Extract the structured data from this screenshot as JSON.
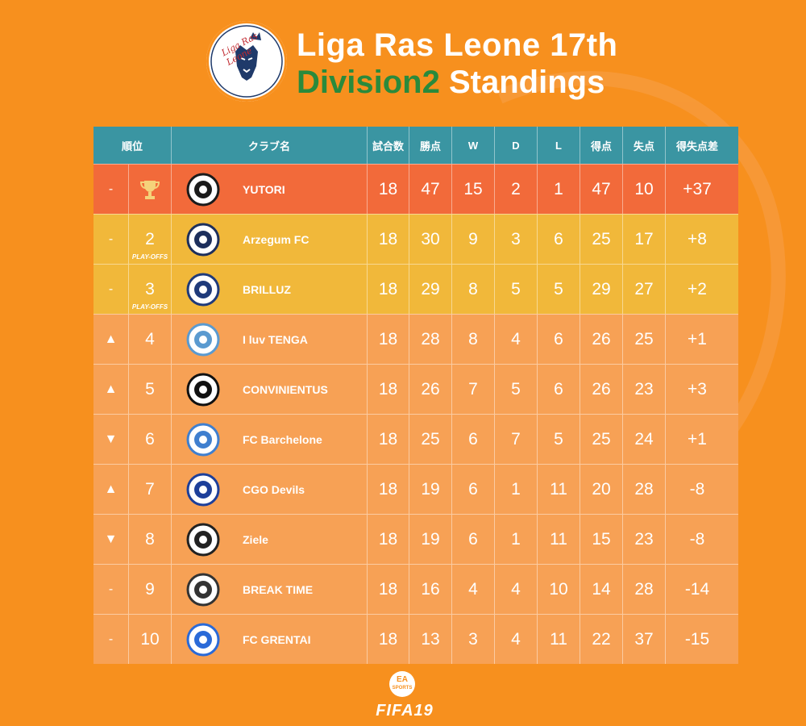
{
  "header": {
    "logo_text": "Liga Ras Leone",
    "title_line1": "Liga Ras Leone 17th",
    "title_line2_green": "Division2",
    "title_line2_white": "Standings"
  },
  "table": {
    "columns": {
      "rank": "順位",
      "club": "クラブ名",
      "played": "試合数",
      "points": "勝点",
      "w": "W",
      "d": "D",
      "l": "L",
      "gf": "得点",
      "ga": "失点",
      "gd": "得失点差"
    },
    "rows": [
      {
        "trend": "-",
        "rank": "",
        "club": "YUTORI",
        "played": "18",
        "points": "47",
        "w": "15",
        "d": "2",
        "l": "1",
        "gf": "47",
        "ga": "10",
        "gd": "+37",
        "note": "",
        "status": "champion"
      },
      {
        "trend": "-",
        "rank": "2",
        "club": "Arzegum FC",
        "played": "18",
        "points": "30",
        "w": "9",
        "d": "3",
        "l": "6",
        "gf": "25",
        "ga": "17",
        "gd": "+8",
        "note": "PLAY-OFFS",
        "status": "playoff"
      },
      {
        "trend": "-",
        "rank": "3",
        "club": "BRILLUZ",
        "played": "18",
        "points": "29",
        "w": "8",
        "d": "5",
        "l": "5",
        "gf": "29",
        "ga": "27",
        "gd": "+2",
        "note": "PLAY-OFFS",
        "status": "playoff"
      },
      {
        "trend": "▲",
        "rank": "4",
        "club": "I luv TENGA",
        "played": "18",
        "points": "28",
        "w": "8",
        "d": "4",
        "l": "6",
        "gf": "26",
        "ga": "25",
        "gd": "+1",
        "note": "",
        "status": "normal"
      },
      {
        "trend": "▲",
        "rank": "5",
        "club": "CONVINIENTUS",
        "played": "18",
        "points": "26",
        "w": "7",
        "d": "5",
        "l": "6",
        "gf": "26",
        "ga": "23",
        "gd": "+3",
        "note": "",
        "status": "normal"
      },
      {
        "trend": "▼",
        "rank": "6",
        "club": "FC Barchelone",
        "played": "18",
        "points": "25",
        "w": "6",
        "d": "7",
        "l": "5",
        "gf": "25",
        "ga": "24",
        "gd": "+1",
        "note": "",
        "status": "normal"
      },
      {
        "trend": "▲",
        "rank": "7",
        "club": "CGO Devils",
        "played": "18",
        "points": "19",
        "w": "6",
        "d": "1",
        "l": "11",
        "gf": "20",
        "ga": "28",
        "gd": "-8",
        "note": "",
        "status": "normal"
      },
      {
        "trend": "▼",
        "rank": "8",
        "club": "Ziele",
        "played": "18",
        "points": "19",
        "w": "6",
        "d": "1",
        "l": "11",
        "gf": "15",
        "ga": "23",
        "gd": "-8",
        "note": "",
        "status": "normal"
      },
      {
        "trend": "-",
        "rank": "9",
        "club": "BREAK TIME",
        "played": "18",
        "points": "16",
        "w": "4",
        "d": "4",
        "l": "10",
        "gf": "14",
        "ga": "28",
        "gd": "-14",
        "note": "",
        "status": "normal"
      },
      {
        "trend": "-",
        "rank": "10",
        "club": "FC GRENTAI",
        "played": "18",
        "points": "13",
        "w": "3",
        "d": "4",
        "l": "11",
        "gf": "22",
        "ga": "37",
        "gd": "-15",
        "note": "",
        "status": "normal"
      }
    ]
  },
  "footer": {
    "ea_line1": "EA",
    "ea_line2": "SPORTS",
    "game": "FIFA19"
  },
  "colors": {
    "background": "#f7901e",
    "header_row": "#3a95a2",
    "champion_row": "#f26a3a",
    "playoff_row": "#f1b83a",
    "normal_row": "#f7a155",
    "title_green": "#2a8a3c"
  }
}
